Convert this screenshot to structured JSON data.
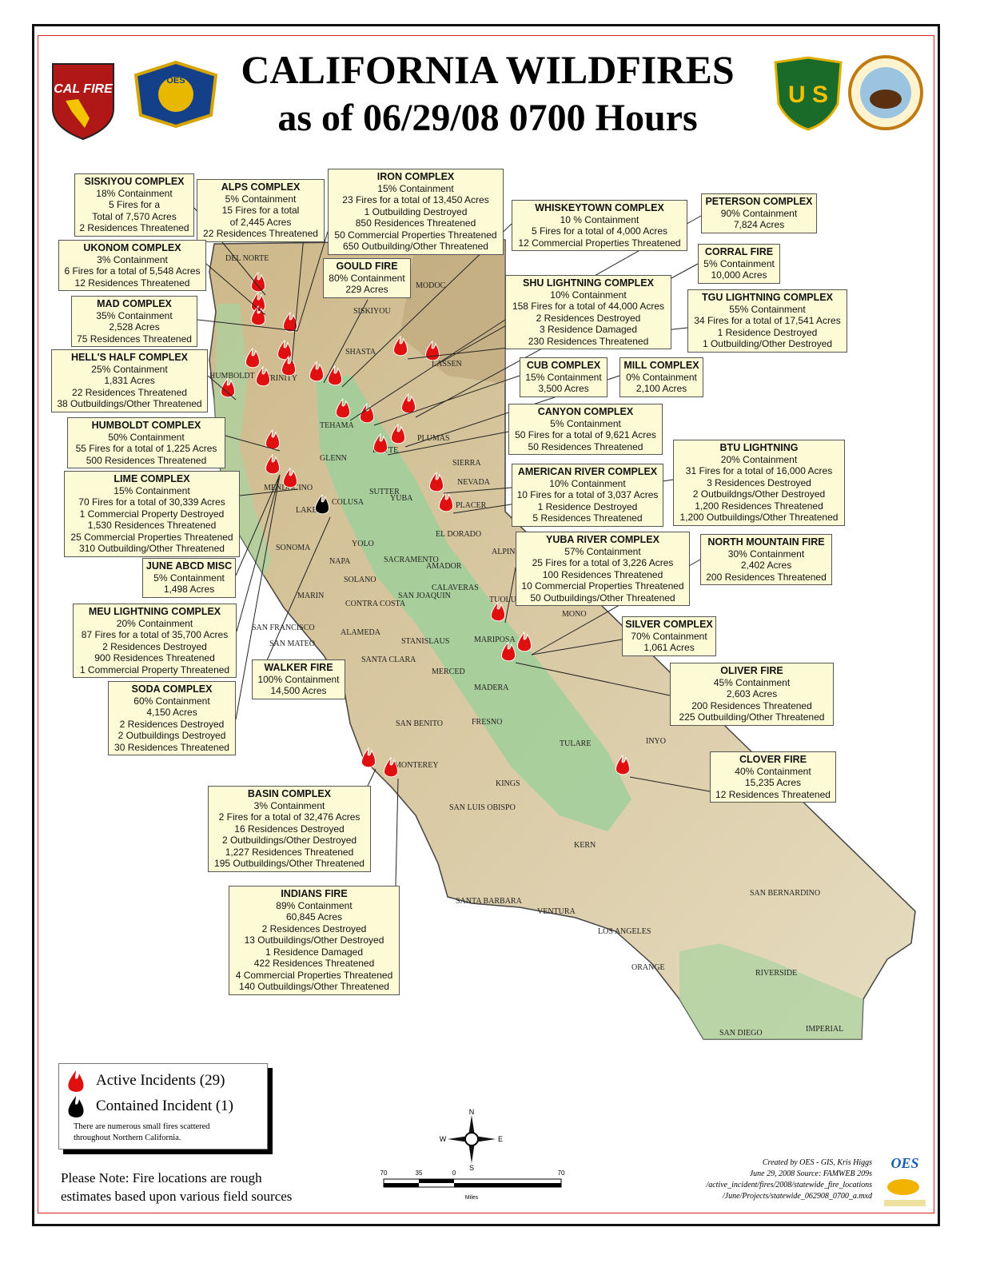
{
  "title": {
    "line1": "CALIFORNIA WILDFIRES",
    "line2": "as of 06/29/08  0700 Hours"
  },
  "logos": {
    "calfire": "CAL FIRE",
    "oes": "OES",
    "forest_service": "U S",
    "interior": "U.S. DEPARTMENT OF THE INTERIOR"
  },
  "colors": {
    "active_fire": "#e01010",
    "contained_fire": "#000000",
    "callout_bg": "#fdfbd6",
    "green_lowland": "#9fcf9a",
    "terrain": "#d8c9a0",
    "border_red": "#dd2222"
  },
  "incidents": [
    {
      "title": "SISKIYOU COMPLEX",
      "lines": [
        "18% Containment",
        "5 Fires for a",
        "Total of 7,570 Acres",
        "2 Residences Threatened"
      ]
    },
    {
      "title": "ALPS COMPLEX",
      "lines": [
        "5% Containment",
        "15 Fires for a total",
        "of 2,445  Acres",
        "22 Residences Threatened"
      ]
    },
    {
      "title": "IRON COMPLEX",
      "lines": [
        "15% Containment",
        "23 Fires for a total of 13,450 Acres",
        "1 Outbuilding Destroyed",
        "850 Residences Threatened",
        "50 Commercial Properties Threatened",
        "650 Outbuilding/Other Threatened"
      ]
    },
    {
      "title": "WHISKEYTOWN COMPLEX",
      "lines": [
        "10 % Containment",
        "5 Fires for a total of 4,000 Acres",
        "12 Commercial Properties Threatened"
      ]
    },
    {
      "title": "PETERSON COMPLEX",
      "lines": [
        "90% Containment",
        "7,824 Acres"
      ]
    },
    {
      "title": "UKONOM COMPLEX",
      "lines": [
        "3% Containment",
        "6 Fires for a total of 5,548 Acres",
        "12 Residences Threatened"
      ]
    },
    {
      "title": "GOULD FIRE",
      "lines": [
        "80% Containment",
        "229 Acres"
      ]
    },
    {
      "title": "CORRAL FIRE",
      "lines": [
        "5% Containment",
        "10,000 Acres"
      ]
    },
    {
      "title": "SHU LIGHTNING COMPLEX",
      "lines": [
        "10% Containment",
        "158 Fires for a total of 44,000 Acres",
        "2 Residences Destroyed",
        "3 Residence Damaged",
        "230 Residences Threatened"
      ]
    },
    {
      "title": "TGU LIGHTNING COMPLEX",
      "lines": [
        "55% Containment",
        "34 Fires for a total of 17,541 Acres",
        "1 Residence Destroyed",
        "1 Outbuilding/Other Destroyed"
      ]
    },
    {
      "title": "MAD COMPLEX",
      "lines": [
        "35% Containment",
        "2,528 Acres",
        "75 Residences Threatened"
      ]
    },
    {
      "title": "HELL'S HALF COMPLEX",
      "lines": [
        "25% Containment",
        "1,831 Acres",
        "22 Residences Threatened",
        "38 Outbuildings/Other Threatened"
      ]
    },
    {
      "title": "CUB COMPLEX",
      "lines": [
        "15% Containment",
        "3,500 Acres"
      ]
    },
    {
      "title": "MILL COMPLEX",
      "lines": [
        "0% Containment",
        "2,100 Acres"
      ]
    },
    {
      "title": "CANYON COMPLEX",
      "lines": [
        "5% Containment",
        "50 Fires for a total of 9,621 Acres",
        "50 Residences Threatened"
      ]
    },
    {
      "title": "HUMBOLDT COMPLEX",
      "lines": [
        "50% Containment",
        "55 Fires for a total of 1,225 Acres",
        "500 Residences Threatened"
      ]
    },
    {
      "title": "BTU LIGHTNING",
      "lines": [
        "20% Containment",
        "31 Fires for a total of 16,000 Acres",
        "3 Residences Destroyed",
        "2 Outbuildngs/Other Destroyed",
        "1,200 Residences Threatened",
        "1,200 Outbuildings/Other Threatened"
      ]
    },
    {
      "title": "LIME COMPLEX",
      "lines": [
        "15% Containment",
        "70 Fires for a total of 30,339 Acres",
        "1 Commercial Property Destroyed",
        "1,530 Residences Threatened",
        "25 Commercial Properties Threatened",
        "310 Outbuilding/Other Threatened"
      ]
    },
    {
      "title": "AMERICAN RIVER COMPLEX",
      "lines": [
        "10% Containment",
        "10 Fires for a total of 3,037 Acres",
        "1 Residence Destroyed",
        "5 Residences Threatened"
      ]
    },
    {
      "title": "YUBA RIVER COMPLEX",
      "lines": [
        "57% Containment",
        "25 Fires for a total of 3,226 Acres",
        "100 Residences Threatened",
        "10 Commercial Properties Threatened",
        "50 Outbuildings/Other Threatened"
      ]
    },
    {
      "title": "NORTH MOUNTAIN FIRE",
      "lines": [
        "30% Containment",
        "2,402 Acres",
        "200 Residences Threatened"
      ]
    },
    {
      "title": "JUNE ABCD MISC",
      "lines": [
        "5% Containment",
        "1,498 Acres"
      ]
    },
    {
      "title": "MEU LIGHTNING COMPLEX",
      "lines": [
        "20% Containment",
        "87 Fires for a total of 35,700 Acres",
        "2 Residences Destroyed",
        "900 Residences Threatened",
        "1 Commercial Property Threatened"
      ]
    },
    {
      "title": "SILVER COMPLEX",
      "lines": [
        "70% Containment",
        "1,061 Acres"
      ]
    },
    {
      "title": "WALKER FIRE",
      "lines": [
        "100% Containment",
        "14,500 Acres"
      ]
    },
    {
      "title": "SODA COMPLEX",
      "lines": [
        "60% Containment",
        "4,150 Acres",
        "2 Residences Destroyed",
        "2 Outbuildings Destroyed",
        "30 Residences Threatened"
      ]
    },
    {
      "title": "OLIVER FIRE",
      "lines": [
        "45% Containment",
        "2,603 Acres",
        "200 Residences Threatened",
        "225  Outbuilding/Other Threatened"
      ]
    },
    {
      "title": "CLOVER FIRE",
      "lines": [
        "40% Containment",
        "15,235 Acres",
        "12 Residences Threatened"
      ]
    },
    {
      "title": "BASIN COMPLEX",
      "lines": [
        "3% Containment",
        "2 Fires for a total of 32,476 Acres",
        "16 Residences Destroyed",
        "2 Outbuildings/Other Destroyed",
        "1,227 Residences Threatened",
        "195 Outbuildings/Other Threatened"
      ]
    },
    {
      "title": "INDIANS FIRE",
      "lines": [
        "89% Containment",
        "60,845 Acres",
        "2 Residences Destroyed",
        "13 Outbuildings/Other Destroyed",
        "1 Residence Damaged",
        "422 Residences Threatened",
        "4 Commercial Properties Threatened",
        "140 Outbuildings/Other Threatened"
      ]
    }
  ],
  "counties": [
    "DEL NORTE",
    "HUMBOLDT",
    "TRINITY",
    "SISKIYOU",
    "MODOC",
    "SHASTA",
    "LASSEN",
    "TEHAMA",
    "PLUMAS",
    "GLENN",
    "BUTTE",
    "SIERRA",
    "NEVADA",
    "PLACER",
    "MENDOCINO",
    "LAKE",
    "COLUSA",
    "SUTTER",
    "YUBA",
    "SONOMA",
    "NAPA",
    "YOLO",
    "SOLANO",
    "MARIN",
    "CONTRA COSTA",
    "SAN FRANCISCO",
    "SAN MATEO",
    "ALAMEDA",
    "SAN JOAQUIN",
    "SACRAMENTO",
    "EL DORADO",
    "AMADOR",
    "ALPINE",
    "CALAVERAS",
    "TUOLUMNE",
    "MONO",
    "MARIPOSA",
    "STANISLAUS",
    "MERCED",
    "SANTA CLARA",
    "MADERA",
    "FRESNO",
    "SAN BENITO",
    "MONTEREY",
    "TULARE",
    "INYO",
    "KINGS",
    "SAN LUIS OBISPO",
    "KERN",
    "SANTA BARBARA",
    "VENTURA",
    "LOS ANGELES",
    "SAN BERNARDINO",
    "ORANGE",
    "RIVERSIDE",
    "SAN DIEGO",
    "IMPERIAL"
  ],
  "legend": {
    "active": "Active Incidents  (29)",
    "contained": "Contained Incident (1)",
    "note": "There are numerous small fires scattered throughout Northern California."
  },
  "compass": {
    "n": "N",
    "s": "S",
    "e": "E",
    "w": "W"
  },
  "scale": {
    "ticks": [
      "70",
      "35",
      "0",
      "70"
    ],
    "unit": "Miles"
  },
  "note": {
    "line1": "Please Note:  Fire locations are rough",
    "line2": "estimates based upon various field sources"
  },
  "credits": [
    "Created by OES - GIS, Kris Higgs",
    "June 29, 2008 Source:  FAMWEB 209s",
    "/active_incident/fires/2008/statewide_fire_locations",
    "/June/Projects/statewide_062908_0700_a.mxd"
  ]
}
